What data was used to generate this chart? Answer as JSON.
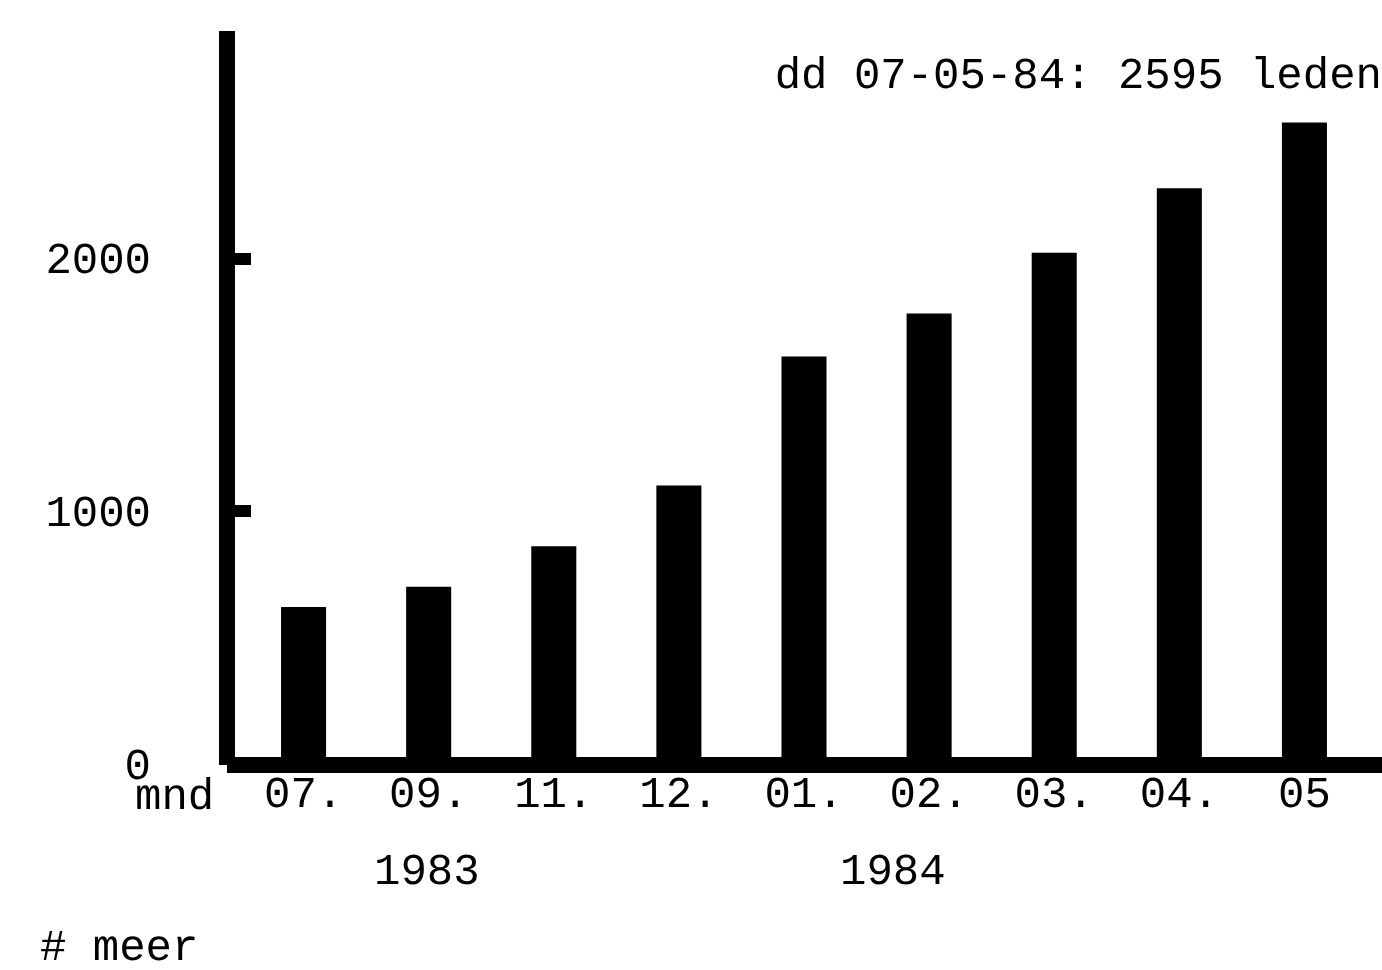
{
  "chart_data": {
    "type": "bar",
    "title": "dd 07-05-84: 2595 leden",
    "xlabel": "mnd",
    "categories": [
      "07.",
      "09.",
      "11.",
      "12.",
      "01.",
      "02.",
      "03.",
      "04.",
      "05"
    ],
    "values": [
      620,
      700,
      860,
      1100,
      1610,
      1780,
      2020,
      2275,
      2535
    ],
    "color": "#000000",
    "ylim": [
      0,
      2900
    ],
    "yticks": [
      0,
      1000,
      2000
    ],
    "annotations": [
      "1983",
      "1984",
      "# meer"
    ]
  }
}
